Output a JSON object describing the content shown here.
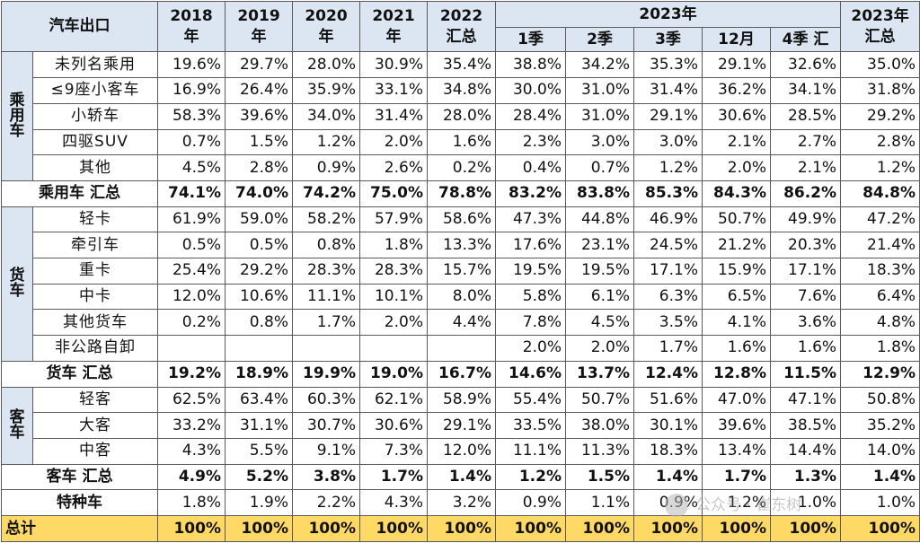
{
  "header": {
    "corner": "汽车出口",
    "years": [
      "2018\n年",
      "2019\n年",
      "2020\n年",
      "2021\n年",
      "2022\n汇总"
    ],
    "year2023": "2023年",
    "quarters": [
      "1季",
      "2季",
      "3季",
      "12月",
      "4季 汇"
    ],
    "total2023": "2023年\n汇总"
  },
  "groups": [
    {
      "name": "乘\n用\n车",
      "rows": [
        {
          "label": "未列名乘用",
          "values": [
            "19.6%",
            "29.7%",
            "28.0%",
            "30.9%",
            "35.4%",
            "38.8%",
            "34.2%",
            "35.3%",
            "29.1%",
            "32.6%",
            "35.0%"
          ]
        },
        {
          "label": "≤9座小客车",
          "values": [
            "16.9%",
            "26.4%",
            "35.9%",
            "33.1%",
            "34.8%",
            "30.0%",
            "31.0%",
            "31.4%",
            "36.2%",
            "34.1%",
            "31.8%"
          ]
        },
        {
          "label": "小轿车",
          "values": [
            "58.3%",
            "39.6%",
            "34.0%",
            "31.4%",
            "28.0%",
            "28.4%",
            "31.0%",
            "29.1%",
            "30.6%",
            "28.5%",
            "29.2%"
          ]
        },
        {
          "label": "四驱SUV",
          "values": [
            "0.7%",
            "1.5%",
            "1.2%",
            "2.0%",
            "1.6%",
            "2.3%",
            "3.0%",
            "3.0%",
            "2.1%",
            "2.7%",
            "2.8%"
          ]
        },
        {
          "label": "其他",
          "values": [
            "4.5%",
            "2.8%",
            "0.9%",
            "2.6%",
            "0.2%",
            "0.4%",
            "0.7%",
            "1.2%",
            "2.0%",
            "2.1%",
            "1.2%"
          ]
        }
      ],
      "subtotal": {
        "label": "乘用车 汇总",
        "values": [
          "74.1%",
          "74.0%",
          "74.2%",
          "75.0%",
          "78.8%",
          "83.2%",
          "83.8%",
          "85.3%",
          "84.3%",
          "86.2%",
          "84.8%"
        ]
      }
    },
    {
      "name": "货\n车",
      "rows": [
        {
          "label": "轻卡",
          "values": [
            "61.9%",
            "59.0%",
            "58.2%",
            "57.9%",
            "58.6%",
            "47.3%",
            "44.8%",
            "46.9%",
            "50.7%",
            "49.9%",
            "47.2%"
          ]
        },
        {
          "label": "牵引车",
          "values": [
            "0.5%",
            "0.5%",
            "0.8%",
            "1.8%",
            "13.3%",
            "17.6%",
            "23.1%",
            "24.5%",
            "21.2%",
            "20.3%",
            "21.4%"
          ]
        },
        {
          "label": "重卡",
          "values": [
            "25.4%",
            "29.2%",
            "28.3%",
            "28.3%",
            "15.7%",
            "19.5%",
            "19.5%",
            "17.1%",
            "15.9%",
            "17.1%",
            "18.3%"
          ]
        },
        {
          "label": "中卡",
          "values": [
            "12.0%",
            "10.6%",
            "11.1%",
            "10.1%",
            "8.0%",
            "5.8%",
            "6.1%",
            "6.3%",
            "6.5%",
            "7.6%",
            "6.4%"
          ]
        },
        {
          "label": "其他货车",
          "values": [
            "0.2%",
            "0.8%",
            "1.7%",
            "2.0%",
            "4.4%",
            "7.8%",
            "4.5%",
            "3.5%",
            "4.1%",
            "3.6%",
            "4.8%"
          ]
        },
        {
          "label": "非公路自卸",
          "values": [
            "",
            "",
            "",
            "",
            "",
            "2.0%",
            "2.0%",
            "1.7%",
            "1.6%",
            "1.6%",
            "1.8%"
          ]
        }
      ],
      "subtotal": {
        "label": "货车 汇总",
        "values": [
          "19.2%",
          "18.9%",
          "19.9%",
          "19.0%",
          "16.7%",
          "14.6%",
          "13.7%",
          "12.4%",
          "12.8%",
          "11.5%",
          "12.9%"
        ]
      }
    },
    {
      "name": "客\n车",
      "rows": [
        {
          "label": "轻客",
          "values": [
            "62.5%",
            "63.4%",
            "60.3%",
            "62.1%",
            "58.9%",
            "55.4%",
            "50.7%",
            "51.6%",
            "47.0%",
            "47.1%",
            "50.8%"
          ]
        },
        {
          "label": "大客",
          "values": [
            "33.2%",
            "31.1%",
            "30.7%",
            "30.6%",
            "29.1%",
            "33.5%",
            "38.0%",
            "30.1%",
            "39.6%",
            "38.5%",
            "35.2%"
          ]
        },
        {
          "label": "中客",
          "values": [
            "4.3%",
            "5.5%",
            "9.1%",
            "7.3%",
            "12.0%",
            "11.1%",
            "11.3%",
            "18.3%",
            "13.4%",
            "14.4%",
            "14.0%"
          ]
        }
      ],
      "subtotal": {
        "label": "客车 汇总",
        "values": [
          "4.9%",
          "5.2%",
          "3.8%",
          "1.7%",
          "1.4%",
          "1.2%",
          "1.5%",
          "1.4%",
          "1.7%",
          "1.3%",
          "1.4%"
        ]
      }
    }
  ],
  "special": {
    "label": "特种车",
    "values": [
      "1.8%",
      "1.9%",
      "2.2%",
      "4.3%",
      "3.2%",
      "0.9%",
      "1.1%",
      "0.9%",
      "1.2%",
      "1.0%",
      "1.0%"
    ]
  },
  "total": {
    "label": "总计",
    "values": [
      "100%",
      "100%",
      "100%",
      "100%",
      "100%",
      "100%",
      "100%",
      "100%",
      "100%",
      "100%",
      "100%"
    ]
  },
  "watermark": "公众号 · 崔东树",
  "colors": {
    "header_bg": "#dce6f2",
    "total_bg": "#ffd966",
    "highlight_text": "#e00000"
  }
}
